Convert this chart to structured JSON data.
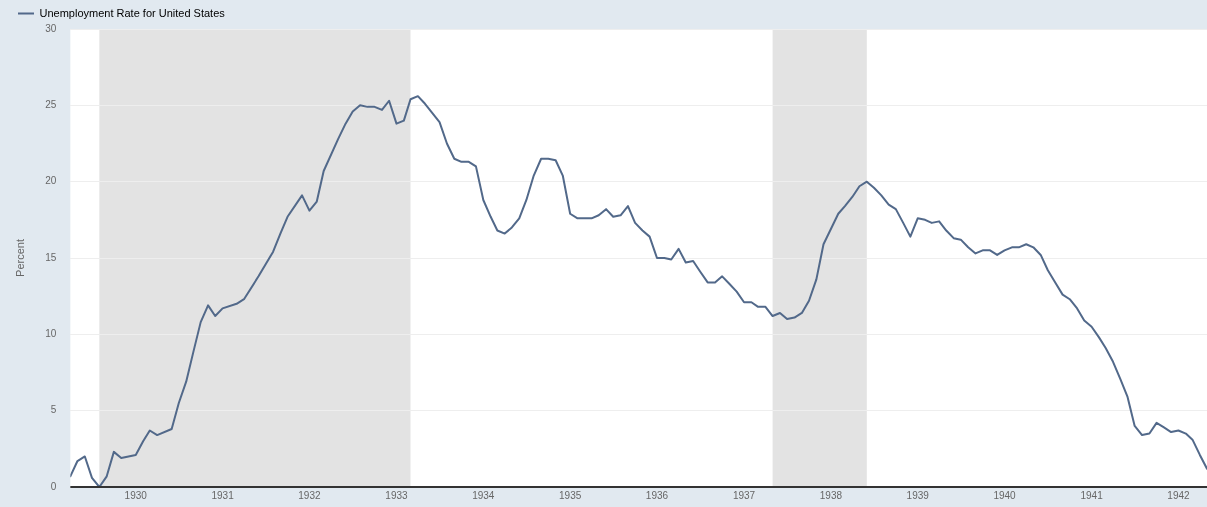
{
  "chart_data": {
    "type": "line",
    "ylabel": "Percent",
    "legend": "top left",
    "grid": "y",
    "marker": "none",
    "line_style": "solid",
    "xlim": [
      "1929-04",
      "1942-05"
    ],
    "xticks": [
      "1930",
      "1931",
      "1932",
      "1933",
      "1934",
      "1935",
      "1936",
      "1937",
      "1938",
      "1939",
      "1940",
      "1941",
      "1942"
    ],
    "ylim": [
      0,
      30
    ],
    "yticks": [
      0,
      5,
      10,
      15,
      20,
      25,
      30
    ],
    "bands": [
      {
        "axis": "x",
        "from": "1929-08",
        "to": "1933-03",
        "color": "#e3e3e3"
      },
      {
        "axis": "x",
        "from": "1937-05",
        "to": "1938-06",
        "color": "#e3e3e3"
      }
    ],
    "series": [
      {
        "name": "Unemployment Rate for United States",
        "color": "#52698a",
        "x": [
          "1929-04",
          "1929-05",
          "1929-06",
          "1929-07",
          "1929-08",
          "1929-09",
          "1929-10",
          "1929-11",
          "1930-01",
          "1930-02",
          "1930-03",
          "1930-04",
          "1930-06",
          "1930-07",
          "1930-08",
          "1930-09",
          "1930-10",
          "1930-11",
          "1930-12",
          "1931-01",
          "1931-03",
          "1931-04",
          "1931-06",
          "1931-08",
          "1931-09",
          "1931-10",
          "1931-12",
          "1932-01",
          "1932-02",
          "1932-03",
          "1932-05",
          "1932-06",
          "1932-07",
          "1932-08",
          "1932-09",
          "1932-10",
          "1932-11",
          "1932-12",
          "1933-01",
          "1933-02",
          "1933-03",
          "1933-04",
          "1933-05",
          "1933-07",
          "1933-08",
          "1933-09",
          "1933-10",
          "1933-11",
          "1933-12",
          "1934-01",
          "1934-02",
          "1934-03",
          "1934-04",
          "1934-05",
          "1934-06",
          "1934-07",
          "1934-08",
          "1934-09",
          "1934-10",
          "1934-11",
          "1934-12",
          "1935-01",
          "1935-02",
          "1935-04",
          "1935-05",
          "1935-06",
          "1935-07",
          "1935-08",
          "1935-09",
          "1935-10",
          "1935-11",
          "1935-12",
          "1936-01",
          "1936-02",
          "1936-03",
          "1936-04",
          "1936-05",
          "1936-06",
          "1936-07",
          "1936-08",
          "1936-09",
          "1936-10",
          "1936-11",
          "1936-12",
          "1937-01",
          "1937-02",
          "1937-03",
          "1937-04",
          "1937-05",
          "1937-06",
          "1937-07",
          "1937-08",
          "1937-09",
          "1937-10",
          "1937-11",
          "1937-12",
          "1938-01",
          "1938-02",
          "1938-03",
          "1938-04",
          "1938-05",
          "1938-06",
          "1938-07",
          "1938-08",
          "1938-09",
          "1938-10",
          "1938-11",
          "1938-12",
          "1939-01",
          "1939-02",
          "1939-03",
          "1939-04",
          "1939-05",
          "1939-06",
          "1939-07",
          "1939-08",
          "1939-09",
          "1939-10",
          "1939-11",
          "1939-12",
          "1940-01",
          "1940-02",
          "1940-03",
          "1940-04",
          "1940-05",
          "1940-06",
          "1940-07",
          "1940-08",
          "1940-09",
          "1940-10",
          "1940-11",
          "1940-12",
          "1941-01",
          "1941-02",
          "1941-03",
          "1941-04",
          "1941-05",
          "1941-06",
          "1941-07",
          "1941-08",
          "1941-09",
          "1941-10",
          "1941-11",
          "1941-12",
          "1942-01",
          "1942-02",
          "1942-03",
          "1942-04",
          "1942-05"
        ],
        "values": [
          0.7,
          1.7,
          2.0,
          0.6,
          0,
          0.7,
          2.3,
          1.9,
          2.1,
          3.0,
          3.7,
          3.4,
          3.8,
          5.5,
          6.9,
          8.9,
          10.8,
          11.9,
          11.2,
          11.7,
          12.0,
          12.3,
          13.8,
          15.4,
          16.6,
          17.7,
          19.1,
          18.1,
          18.7,
          20.7,
          22.8,
          23.8,
          24.6,
          25.0,
          24.9,
          24.9,
          24.7,
          25.3,
          23.8,
          24.0,
          25.4,
          25.6,
          25.1,
          23.9,
          22.5,
          21.5,
          21.3,
          21.3,
          21.0,
          18.8,
          17.7,
          16.8,
          16.6,
          17.0,
          17.6,
          18.8,
          20.4,
          21.5,
          21.5,
          21.4,
          20.4,
          17.9,
          17.6,
          17.6,
          17.8,
          18.2,
          17.7,
          17.8,
          18.4,
          17.3,
          16.8,
          16.4,
          15.0,
          15.0,
          14.9,
          15.6,
          14.7,
          14.8,
          14.1,
          13.4,
          13.4,
          13.8,
          13.3,
          12.8,
          12.1,
          12.1,
          11.8,
          11.8,
          11.2,
          11.4,
          11.0,
          11.1,
          11.4,
          12.2,
          13.6,
          15.9,
          16.9,
          17.9,
          18.4,
          19.0,
          19.7,
          20.0,
          19.6,
          19.1,
          18.5,
          18.2,
          17.3,
          16.4,
          17.6,
          17.5,
          17.3,
          17.4,
          16.8,
          16.3,
          16.2,
          15.7,
          15.3,
          15.5,
          15.5,
          15.2,
          15.5,
          15.7,
          15.7,
          15.9,
          15.7,
          15.2,
          14.2,
          13.4,
          12.6,
          12.3,
          11.7,
          10.9,
          10.5,
          9.8,
          9.1,
          8.2,
          7.1,
          5.9,
          4.0,
          3.4,
          3.5,
          4.2,
          3.9,
          3.6,
          3.7,
          3.5,
          3.1,
          2.1,
          1.2
        ]
      }
    ]
  }
}
